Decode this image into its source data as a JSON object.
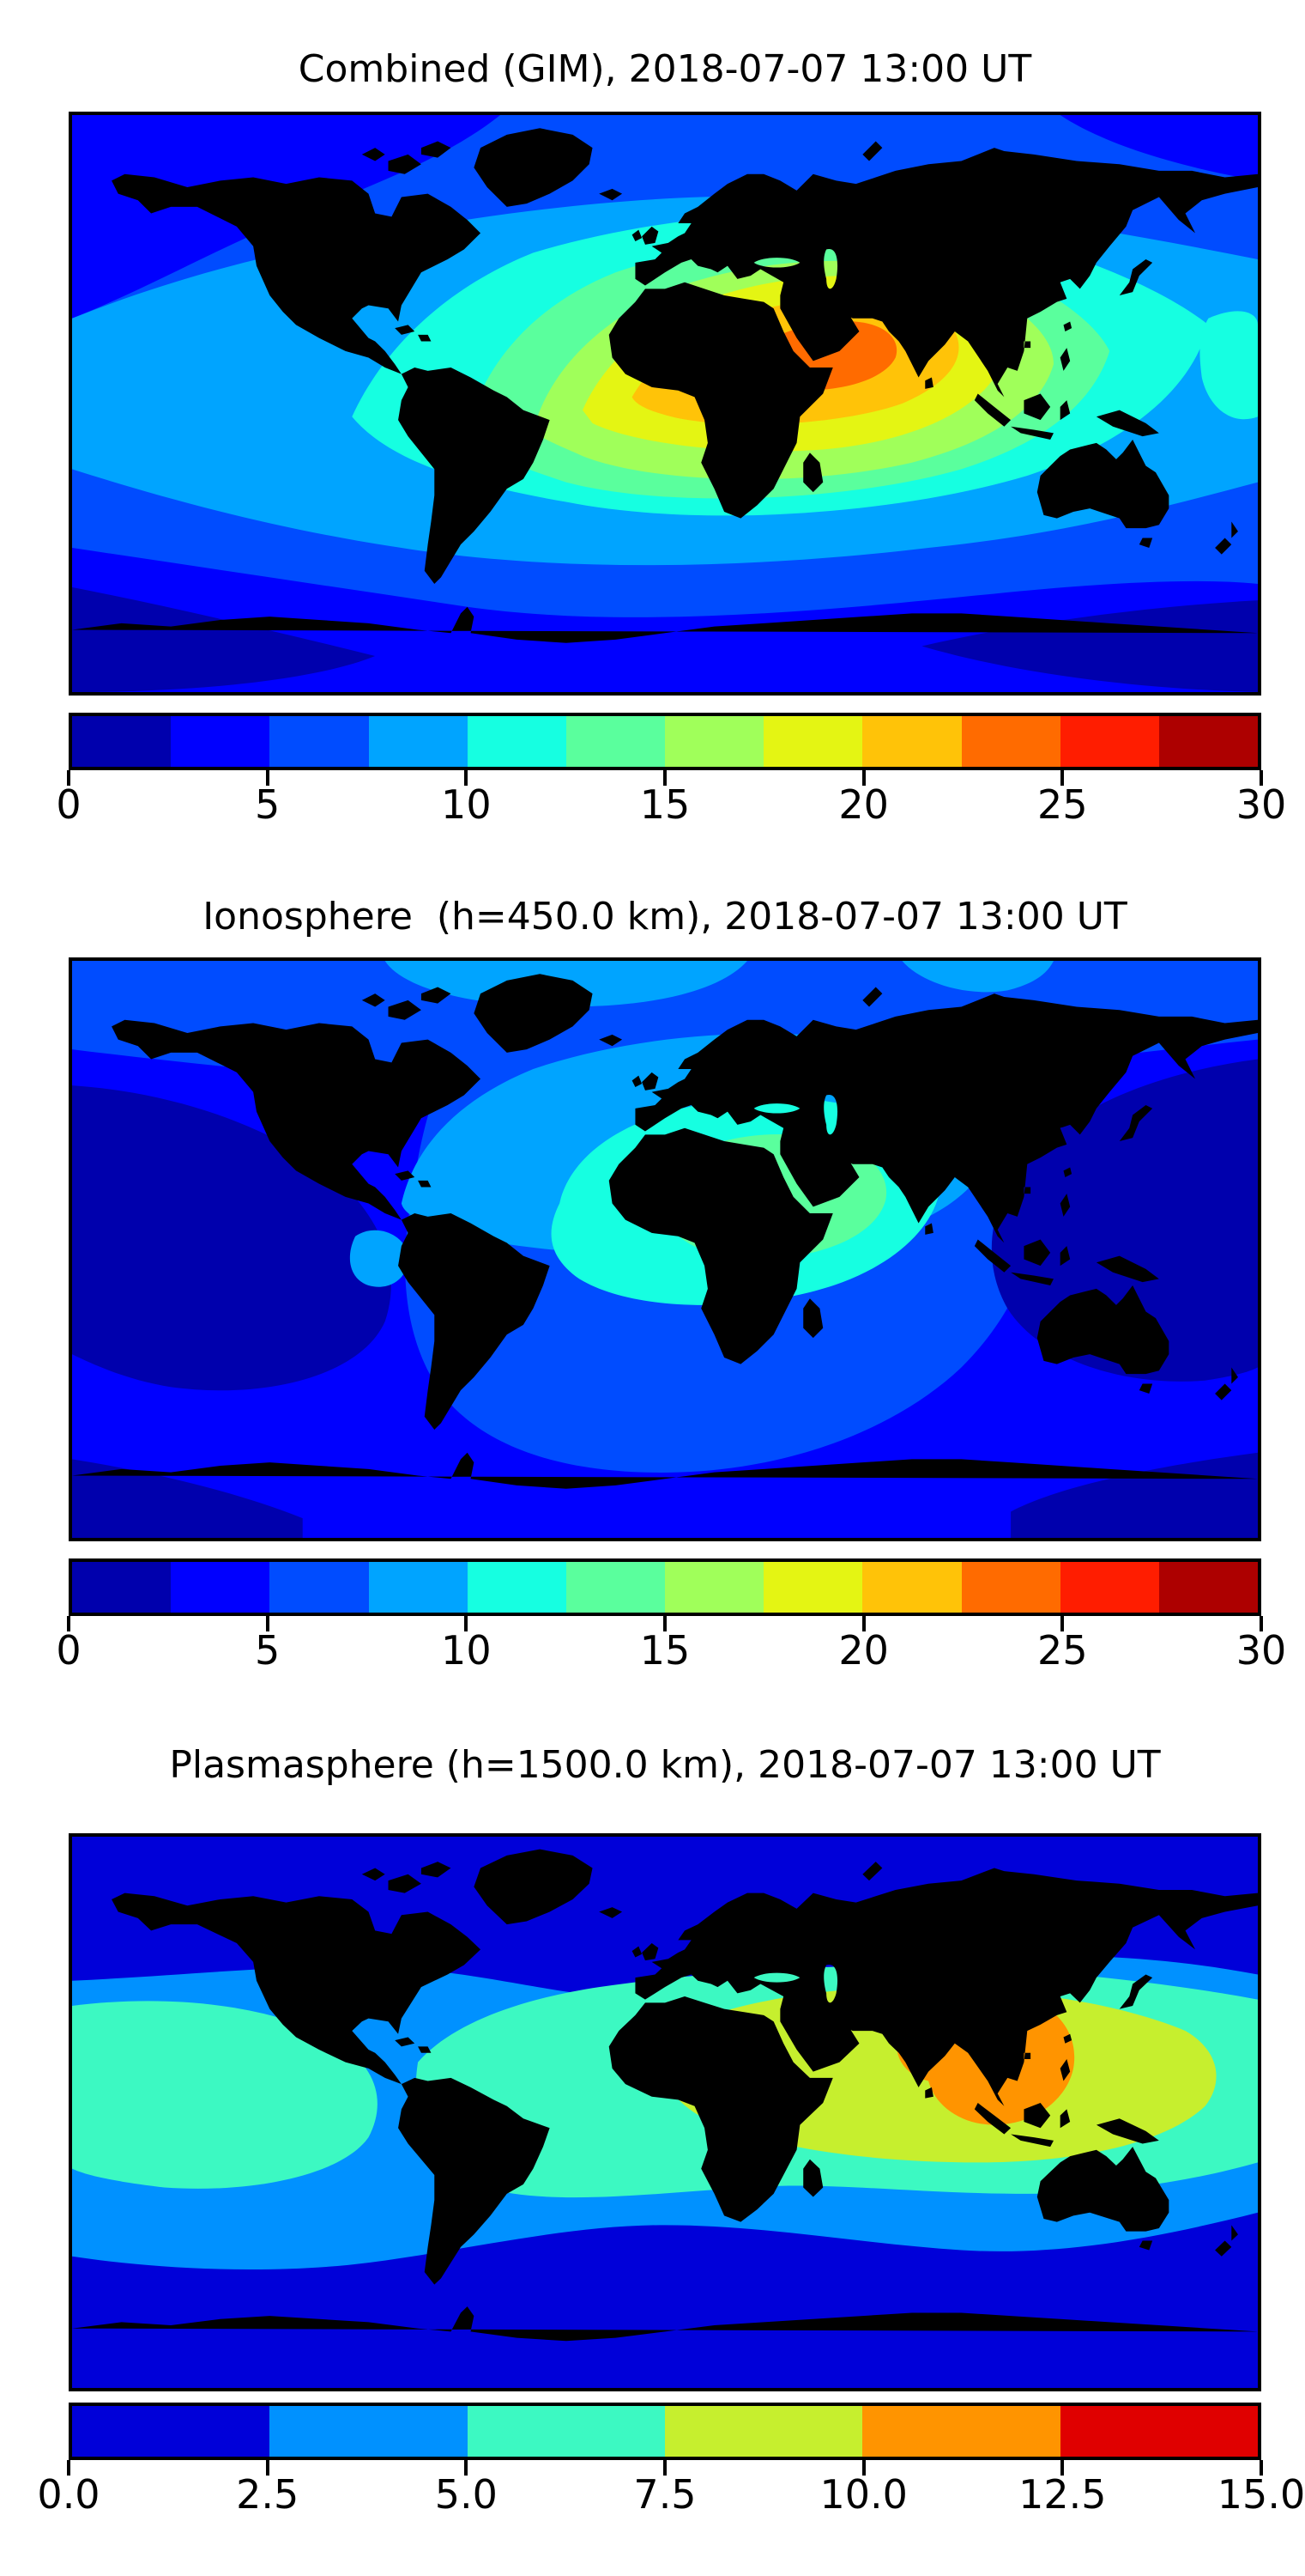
{
  "panels": [
    {
      "title": "Combined (GIM), 2018-07-07 13:00 UT",
      "colorbar": {
        "vmin": 0,
        "vmax": 30,
        "tick_labels": [
          "0",
          "5",
          "10",
          "15",
          "20",
          "25",
          "30"
        ],
        "colors": [
          "#0000ad",
          "#0000ff",
          "#004cff",
          "#00a4ff",
          "#16ffe1",
          "#5aff9d",
          "#a0ff5a",
          "#e4f513",
          "#ffc308",
          "#ff6b00",
          "#ff1d00",
          "#ad0000"
        ]
      }
    },
    {
      "title": "Ionosphere  (h=450.0 km), 2018-07-07 13:00 UT",
      "colorbar": {
        "vmin": 0,
        "vmax": 30,
        "tick_labels": [
          "0",
          "5",
          "10",
          "15",
          "20",
          "25",
          "30"
        ],
        "colors": [
          "#0000ad",
          "#0000ff",
          "#004cff",
          "#00a4ff",
          "#16ffe1",
          "#5aff9d",
          "#a0ff5a",
          "#e4f513",
          "#ffc308",
          "#ff6b00",
          "#ff1d00",
          "#ad0000"
        ]
      }
    },
    {
      "title": "Plasmasphere (h=1500.0 km), 2018-07-07 13:00 UT",
      "colorbar": {
        "vmin": 0,
        "vmax": 15,
        "tick_labels": [
          "0.0",
          "2.5",
          "5.0",
          "7.5",
          "10.0",
          "12.5",
          "15.0"
        ],
        "colors": [
          "#0000d9",
          "#0091ff",
          "#3cf9c2",
          "#c6ef2e",
          "#ff9400",
          "#e00000"
        ]
      }
    }
  ],
  "chart_data": [
    {
      "type": "heatmap",
      "title": "Combined (GIM), 2018-07-07 13:00 UT",
      "projection": "equirectangular world map with coastlines, lon -180..180, lat -90..90",
      "colormap": "jet, 12 discrete levels",
      "levels": [
        0,
        2.5,
        5,
        7.5,
        10,
        12.5,
        15,
        17.5,
        20,
        22.5,
        25,
        27.5,
        30
      ],
      "colorbar_ticks": [
        0,
        5,
        10,
        15,
        20,
        25,
        30
      ],
      "legend_position": "horizontal colorbar below map",
      "max_feature": {
        "band": "22.5-25",
        "location": "NE Africa / Arabian Peninsula, ~10-25N, 25-60E"
      },
      "pattern": "Single dayside maximum over Africa/Middle East with concentric rings (yellow 17.5-20 over Sahara to India, green/cyan 10-15 over Atlantic-Europe-Asia); low values 2.5-7.5 over Pacific and polar regions; darkest band 0-5 along Antarctic edge"
    },
    {
      "type": "heatmap",
      "title": "Ionosphere  (h=450.0 km), 2018-07-07 13:00 UT",
      "projection": "equirectangular world map with coastlines, lon -180..180, lat -90..90",
      "colormap": "jet, 12 discrete levels",
      "levels": [
        0,
        2.5,
        5,
        7.5,
        10,
        12.5,
        15,
        17.5,
        20,
        22.5,
        25,
        27.5,
        30
      ],
      "colorbar_ticks": [
        0,
        5,
        10,
        15,
        20,
        25,
        30
      ],
      "legend_position": "horizontal colorbar below map",
      "max_feature": {
        "band": "12.5-15",
        "location": "central Africa / Arabia, ~0-20N, 0-50E"
      },
      "pattern": "Moderate maximum (cyan/mint 10-15) over Africa-Middle East, light blue 7.5-10 over North Atlantic and Europe, background blue 5-7.5, deep minima 0-2.5 over both central Pacific night-side regions"
    },
    {
      "type": "heatmap",
      "title": "Plasmasphere (h=1500.0 km), 2018-07-07 13:00 UT",
      "projection": "equirectangular world map with coastlines, lon -180..180, lat -90..90",
      "colormap": "jet, 6 discrete levels",
      "levels": [
        0,
        2.5,
        5,
        7.5,
        10,
        12.5,
        15
      ],
      "colorbar_ticks": [
        0.0,
        2.5,
        5.0,
        7.5,
        10.0,
        12.5,
        15.0
      ],
      "legend_position": "horizontal colorbar below map",
      "max_feature": {
        "band": "10-12.5",
        "location": "South / Southeast Asia, ~95-125E, 10S-25N"
      },
      "pattern": "Equatorial band structure: orange core over SE Asia, yellow-green 7.5-10 band from Africa to west Pacific, cyan 5-7.5 equatorial band spanning the globe, light blue 2.5-5 mid-latitudes, dark blue 0-2.5 poleward of about 45 degrees both hemispheres"
    }
  ]
}
